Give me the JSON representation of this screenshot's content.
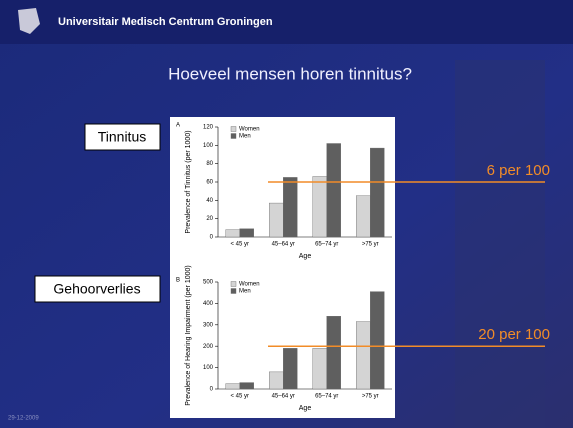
{
  "slide": {
    "header": "Universitair Medisch Centrum Groningen",
    "title": "Hoeveel mensen horen tinnitus?",
    "labels": [
      "Tinnitus",
      "Gehoorverlies"
    ],
    "date": "29-12-2009"
  },
  "chart_data": [
    {
      "type": "bar",
      "panel": "A",
      "y_label": "Prevalence of Tinnitus (per 1000)",
      "x_label": "Age",
      "categories": [
        "< 45 yr",
        "45–64 yr",
        "65–74 yr",
        ">75 yr"
      ],
      "series": [
        {
          "name": "Women",
          "color": "#d4d4d4",
          "values": [
            8,
            37,
            66,
            45
          ]
        },
        {
          "name": "Men",
          "color": "#5f5f5f",
          "values": [
            9,
            65,
            102,
            97
          ]
        }
      ],
      "ylim": [
        0,
        120
      ],
      "yticks": [
        0,
        20,
        40,
        60,
        80,
        100,
        120
      ],
      "reference_line": {
        "value": 60,
        "label": "6 per 100",
        "color": "#f28c28"
      }
    },
    {
      "type": "bar",
      "panel": "B",
      "y_label": "Prevalence of Hearing Impairment (per 1000)",
      "x_label": "Age",
      "categories": [
        "< 45 yr",
        "45–64 yr",
        "65–74 yr",
        ">75 yr"
      ],
      "series": [
        {
          "name": "Women",
          "color": "#d4d4d4",
          "values": [
            25,
            80,
            190,
            315
          ]
        },
        {
          "name": "Men",
          "color": "#5f5f5f",
          "values": [
            30,
            190,
            340,
            455
          ]
        }
      ],
      "ylim": [
        0,
        500
      ],
      "yticks": [
        0,
        100,
        200,
        300,
        400,
        500
      ],
      "reference_line": {
        "value": 200,
        "label": "20 per 100",
        "color": "#f28c28"
      }
    }
  ]
}
